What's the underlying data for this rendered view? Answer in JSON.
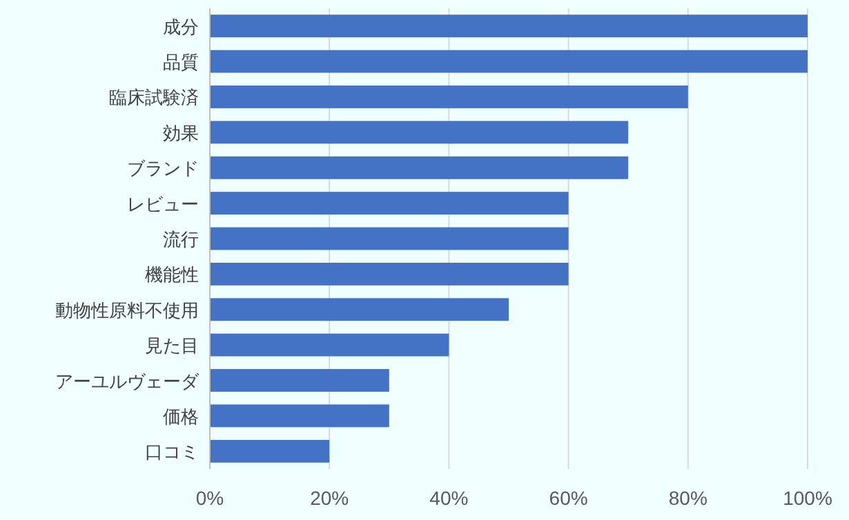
{
  "chart_data": {
    "type": "bar",
    "orientation": "horizontal",
    "categories": [
      "成分",
      "品質",
      "臨床試験済",
      "効果",
      "ブランド",
      "レビュー",
      "流行",
      "機能性",
      "動物性原料不使用",
      "見た目",
      "アーユルヴェーダ",
      "価格",
      "口コミ"
    ],
    "values": [
      100,
      100,
      80,
      70,
      70,
      60,
      60,
      60,
      50,
      40,
      30,
      30,
      20
    ],
    "color": "#4472c4",
    "xlim": [
      0,
      100
    ],
    "xticks": [
      {
        "value": 0,
        "label": "0%"
      },
      {
        "value": 20,
        "label": "20%"
      },
      {
        "value": 40,
        "label": "40%"
      },
      {
        "value": 60,
        "label": "60%"
      },
      {
        "value": 80,
        "label": "80%"
      },
      {
        "value": 100,
        "label": "100%"
      }
    ],
    "grid": "x"
  }
}
